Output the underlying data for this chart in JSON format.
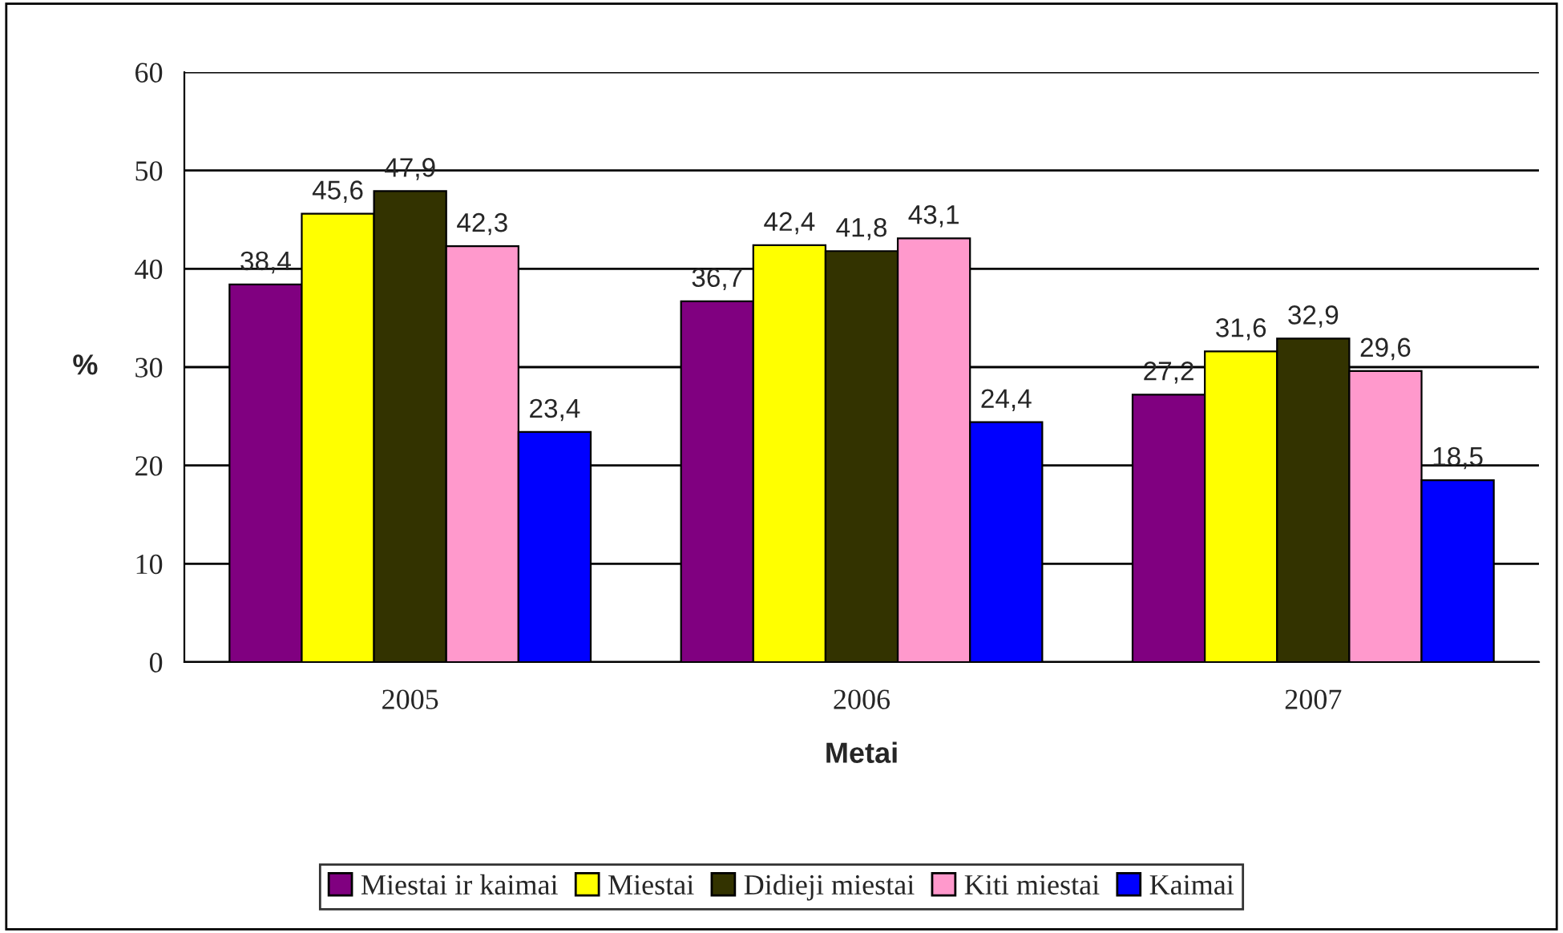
{
  "chart_data": {
    "type": "bar",
    "xlabel": "Metai",
    "ylabel": "%",
    "categories": [
      "2005",
      "2006",
      "2007"
    ],
    "series": [
      {
        "name": "Miestai ir kaimai",
        "color": "#800080",
        "values": [
          38.4,
          36.7,
          27.2
        ],
        "value_labels": [
          "38,4",
          "36,7",
          "27,2"
        ]
      },
      {
        "name": "Miestai",
        "color": "#ffff00",
        "values": [
          45.6,
          42.4,
          31.6
        ],
        "value_labels": [
          "45,6",
          "42,4",
          "31,6"
        ]
      },
      {
        "name": "Didieji miestai",
        "color": "#333300",
        "values": [
          47.9,
          41.8,
          32.9
        ],
        "value_labels": [
          "47,9",
          "41,8",
          "32,9"
        ]
      },
      {
        "name": "Kiti miestai",
        "color": "#ff99cc",
        "values": [
          42.3,
          43.1,
          29.6
        ],
        "value_labels": [
          "42,3",
          "43,1",
          "29,6"
        ]
      },
      {
        "name": "Kaimai",
        "color": "#0000ff",
        "values": [
          23.4,
          24.4,
          18.5
        ],
        "value_labels": [
          "23,4",
          "24,4",
          "18,5"
        ]
      }
    ],
    "ylim": [
      0,
      60
    ],
    "yticks": [
      0,
      10,
      20,
      30,
      40,
      50,
      60
    ],
    "grid": "y",
    "legend": "bottom"
  }
}
